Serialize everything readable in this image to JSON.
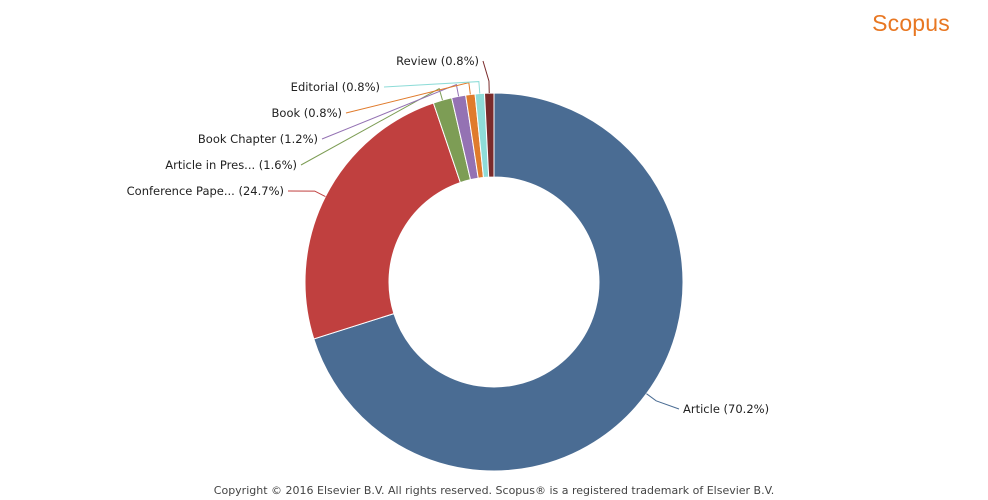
{
  "brand": {
    "logo_text": "Scopus",
    "color": "#e87722"
  },
  "footer": {
    "copyright": "Copyright © 2016 Elsevier B.V. All rights reserved. Scopus® is a registered trademark of Elsevier B.V."
  },
  "chart_data": {
    "type": "pie",
    "variant": "donut",
    "title": "",
    "start_angle_deg": 0,
    "direction": "clockwise",
    "slices": [
      {
        "label": "Article (70.2%)",
        "value": 70.2,
        "color": "#4a6c93"
      },
      {
        "label": "Conference Pape... (24.7%)",
        "value": 24.7,
        "color": "#c0403f"
      },
      {
        "label": "Article in Pres... (1.6%)",
        "value": 1.6,
        "color": "#7d9d55"
      },
      {
        "label": "Book Chapter (1.2%)",
        "value": 1.2,
        "color": "#9472b3"
      },
      {
        "label": "Book (0.8%)",
        "value": 0.8,
        "color": "#e07b2c"
      },
      {
        "label": "Editorial (0.8%)",
        "value": 0.8,
        "color": "#8edcd8"
      },
      {
        "label": "Review (0.8%)",
        "value": 0.8,
        "color": "#7a2b2b"
      }
    ]
  }
}
